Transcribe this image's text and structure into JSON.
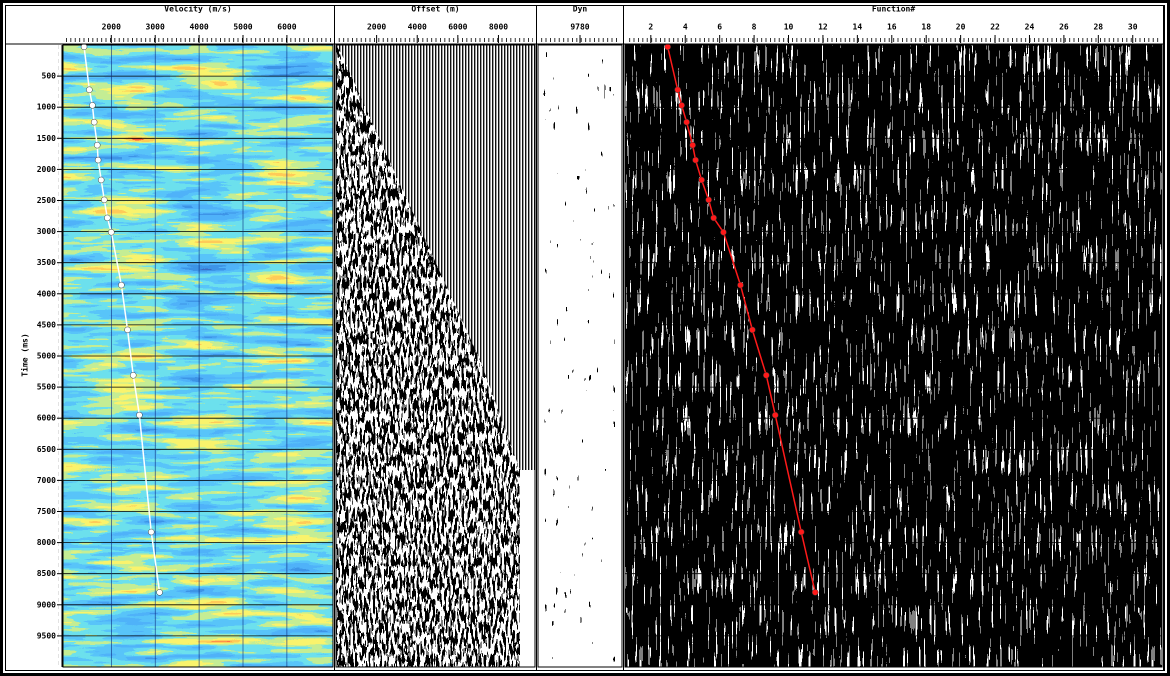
{
  "chart_data": [
    {
      "type": "scatter",
      "title": "Velocity (m/s)",
      "y_label": "Time (ms)",
      "xlim": [
        900,
        7050
      ],
      "xticks": [
        2000,
        3000,
        4000,
        5000,
        6000
      ],
      "ylim": [
        0,
        10000
      ],
      "y_inverted": true,
      "yticks": [
        500,
        1000,
        1500,
        2000,
        2500,
        3000,
        3500,
        4000,
        4500,
        5000,
        5500,
        6000,
        6500,
        7000,
        7500,
        8000,
        8500,
        9000,
        9500
      ],
      "grid": true,
      "series": [
        {
          "color": "#ffffff",
          "x": [
            1380,
            1500,
            1570,
            1610,
            1680,
            1700,
            1770,
            1840,
            1910,
            2000,
            2230,
            2370,
            2500,
            2640,
            2910,
            3100
          ],
          "y": [
            30,
            720,
            970,
            1240,
            1610,
            1850,
            2170,
            2490,
            2780,
            3010,
            3860,
            4580,
            5310,
            5950,
            7830,
            8800
          ]
        }
      ]
    },
    {
      "type": "image",
      "title": "Offset (m)",
      "xlim": [
        0,
        9800
      ],
      "xticks": [
        2000,
        4000,
        6000,
        8000
      ],
      "ylim": [
        0,
        10000
      ],
      "y_inverted": true
    },
    {
      "type": "image",
      "title": "Dyn",
      "xticks": [
        9780
      ],
      "ylim": [
        0,
        10000
      ],
      "y_inverted": true
    },
    {
      "type": "scatter",
      "title": "Function#",
      "xlim": [
        0.5,
        31.7
      ],
      "xticks": [
        2,
        4,
        6,
        8,
        10,
        12,
        14,
        16,
        18,
        20,
        22,
        24,
        26,
        28,
        30
      ],
      "ylim": [
        0,
        10000
      ],
      "y_inverted": true,
      "grid": true,
      "series": [
        {
          "color": "#ff1a1a",
          "x": [
            2.98,
            3.56,
            3.79,
            4.08,
            4.43,
            4.6,
            4.95,
            5.36,
            5.65,
            6.22,
            7.21,
            7.9,
            8.71,
            9.23,
            10.74,
            11.55
          ],
          "y": [
            30,
            720,
            970,
            1240,
            1610,
            1850,
            2170,
            2490,
            2780,
            3010,
            3860,
            4580,
            5310,
            5950,
            7830,
            8800
          ]
        }
      ]
    }
  ]
}
